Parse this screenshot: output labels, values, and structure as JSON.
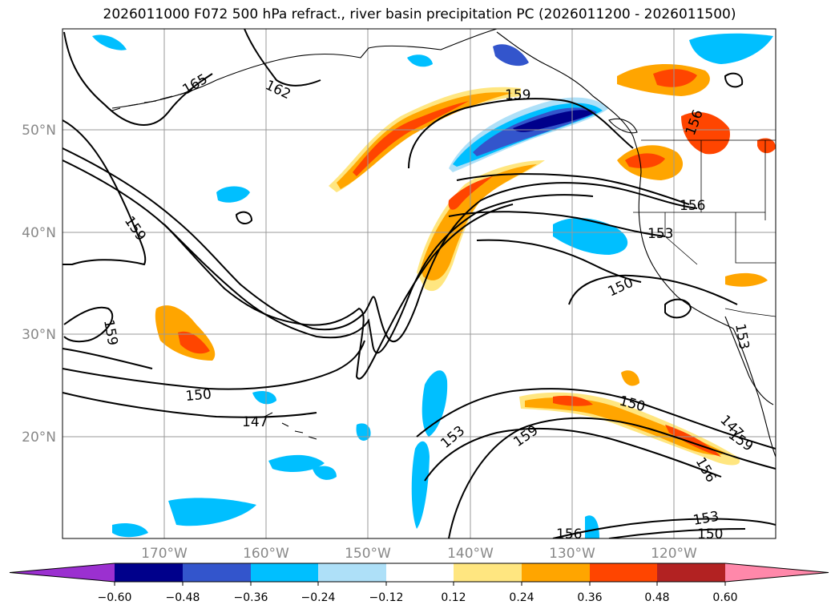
{
  "title": "2026011000 F072 500 hPa refract., river basin precipitation PC (2026011200 - 2026011500)",
  "map": {
    "lon_range": [
      -180,
      -110
    ],
    "lat_range": [
      10,
      60
    ],
    "lat_labels": [
      "50°N",
      "40°N",
      "30°N",
      "20°N"
    ],
    "lon_labels": [
      "170°W",
      "160°W",
      "150°W",
      "140°W",
      "130°W",
      "120°W"
    ],
    "contour_labels": [
      "165",
      "162",
      "159",
      "159",
      "159",
      "156",
      "153",
      "150",
      "150",
      "150",
      "147",
      "147",
      "153",
      "159",
      "156",
      "156",
      "153",
      "150",
      "153",
      "156",
      "159"
    ]
  },
  "colorbar": {
    "labels": [
      "−0.60",
      "−0.48",
      "−0.36",
      "−0.24",
      "−0.12",
      "0.12",
      "0.24",
      "0.36",
      "0.48",
      "0.60"
    ],
    "colors": [
      "#9b30d0",
      "#00008b",
      "#3355cc",
      "#00bfff",
      "#aee0f8",
      "#ffffff",
      "#ffe680",
      "#ffa500",
      "#ff4500",
      "#b22222",
      "#ff88aa"
    ]
  }
}
